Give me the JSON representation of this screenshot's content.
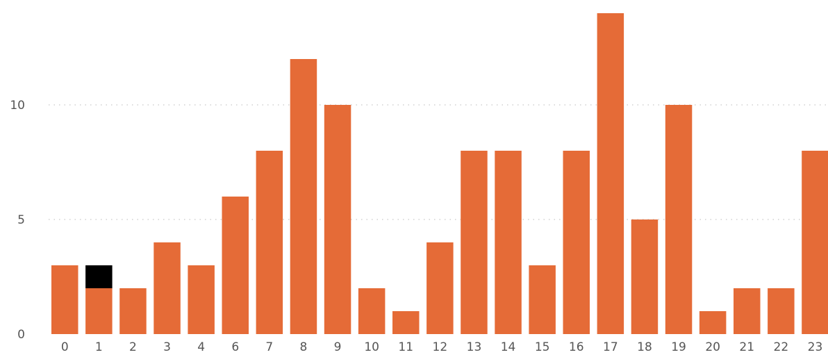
{
  "chart_data": {
    "type": "bar",
    "categories": [
      "0",
      "1",
      "2",
      "3",
      "4",
      "6",
      "7",
      "8",
      "9",
      "10",
      "11",
      "12",
      "13",
      "14",
      "15",
      "16",
      "17",
      "18",
      "19",
      "20",
      "21",
      "22",
      "23"
    ],
    "series": [
      {
        "values": [
          3,
          2,
          2,
          4,
          3,
          6,
          8,
          12,
          10,
          2,
          1,
          4,
          8,
          8,
          3,
          8,
          14,
          5,
          10,
          1,
          2,
          2,
          8
        ]
      },
      {
        "values": [
          0,
          1,
          0,
          0,
          0,
          0,
          0,
          0,
          0,
          0,
          0,
          0,
          0,
          0,
          0,
          0,
          0,
          0,
          0,
          0,
          0,
          0,
          0
        ]
      }
    ],
    "yticks": [
      "0",
      "5",
      "10"
    ],
    "ylim": [
      0,
      14
    ],
    "grid": true,
    "title": "",
    "xlabel": "",
    "ylabel": "",
    "colors": [
      "#E56B37",
      "#000000"
    ]
  }
}
